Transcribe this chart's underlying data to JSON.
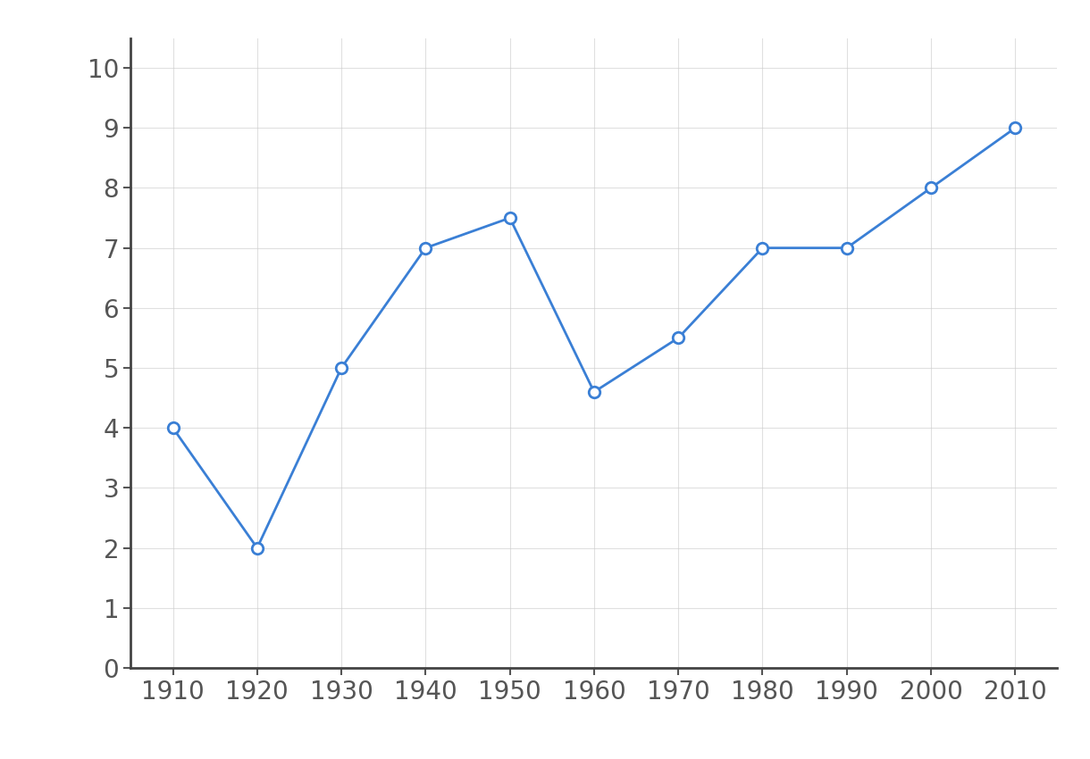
{
  "x": [
    1910,
    1920,
    1930,
    1940,
    1950,
    1960,
    1970,
    1980,
    1990,
    2000,
    2010
  ],
  "y": [
    4,
    2,
    5,
    7,
    7.5,
    4.6,
    5.5,
    7,
    7,
    8,
    9
  ],
  "line_color": "#3a7fd5",
  "marker_style": "o",
  "marker_facecolor": "#ffffff",
  "marker_edgecolor": "#3a7fd5",
  "marker_size": 9,
  "marker_linewidth": 2,
  "line_width": 2,
  "xlim": [
    1905,
    2015
  ],
  "ylim": [
    0,
    10.5
  ],
  "xticks": [
    1910,
    1920,
    1930,
    1940,
    1950,
    1960,
    1970,
    1980,
    1990,
    2000,
    2010
  ],
  "yticks": [
    0,
    1,
    2,
    3,
    4,
    5,
    6,
    7,
    8,
    9,
    10
  ],
  "grid_color": "#cccccc",
  "grid_alpha": 0.6,
  "background_color": "#ffffff",
  "tick_fontsize": 20,
  "tick_color": "#555555",
  "spine_color": "#444444"
}
